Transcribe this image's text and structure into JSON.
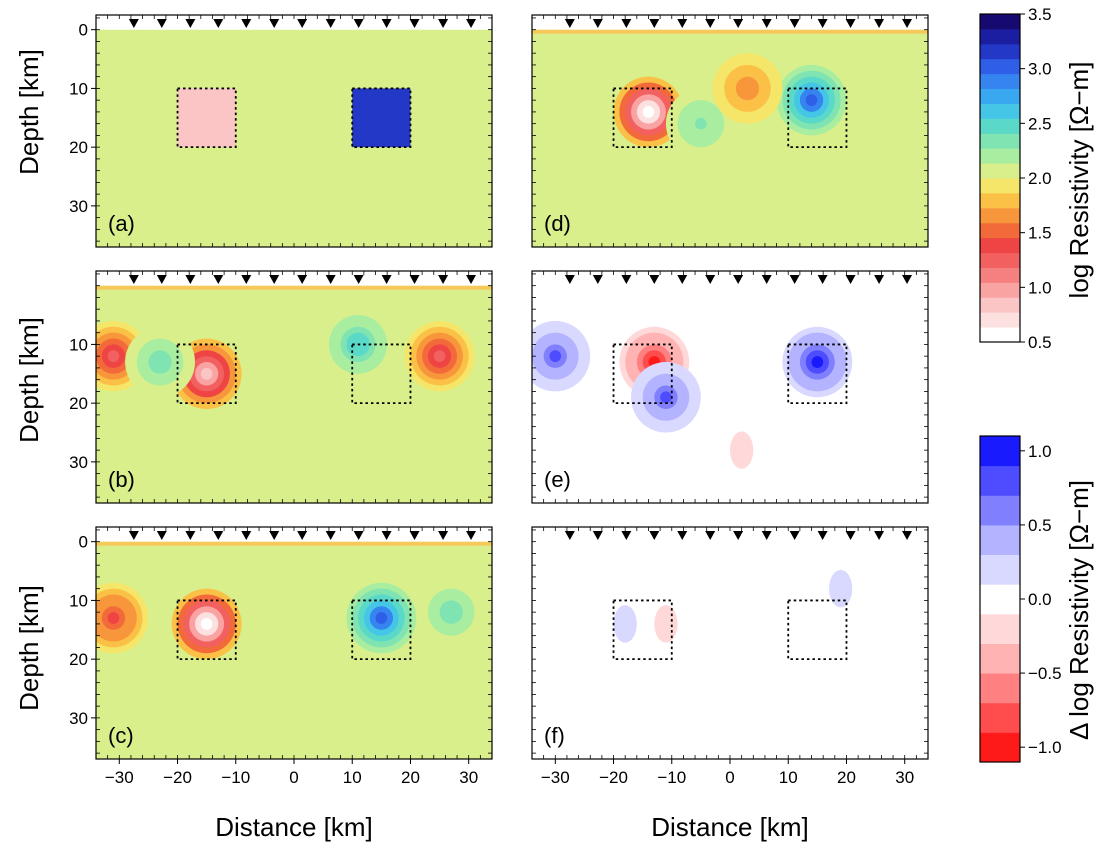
{
  "chart_data": {
    "type": "heatmap",
    "x_axis": {
      "label": "Distance [km]",
      "ticks": [
        "−30",
        "−20",
        "−10",
        "0",
        "10",
        "20",
        "30"
      ],
      "tick_values": [
        -30,
        -20,
        -10,
        0,
        10,
        20,
        30
      ],
      "range": [
        -34,
        34
      ]
    },
    "y_axis": {
      "label": "Depth [km]",
      "ticks": [
        "0",
        "10",
        "20",
        "30"
      ],
      "tick_values": [
        0,
        10,
        20,
        30
      ],
      "range": [
        -2.5,
        37
      ]
    },
    "stations_km": [
      -27.5,
      -22.7,
      -17.8,
      -13,
      -8.2,
      -3.4,
      1.4,
      6.3,
      11.1,
      15.9,
      20.7,
      25.6,
      30.4
    ],
    "anomaly_boxes": [
      {
        "x": [
          -20,
          -10
        ],
        "depth": [
          10,
          20
        ]
      },
      {
        "x": [
          10,
          20
        ],
        "depth": [
          10,
          20
        ]
      }
    ],
    "panels": [
      {
        "label": "(a)",
        "kind": "true_model",
        "background": 2.0,
        "blobs": [
          {
            "x": -15,
            "z": 15,
            "value": 0.9,
            "shape": "box"
          },
          {
            "x": 15,
            "z": 15,
            "value": 3.1,
            "shape": "box"
          }
        ]
      },
      {
        "label": "(b)",
        "kind": "inversion",
        "background": 2.0,
        "blobs": [
          {
            "x": -15,
            "z": 15,
            "value": 0.8
          },
          {
            "x": -31,
            "z": 12,
            "value": 1.2
          },
          {
            "x": 25,
            "z": 12,
            "value": 1.2
          },
          {
            "x": 11,
            "z": 10,
            "value": 2.5
          },
          {
            "x": -23,
            "z": 13,
            "value": 2.4
          }
        ]
      },
      {
        "label": "(c)",
        "kind": "inversion",
        "background": 2.0,
        "blobs": [
          {
            "x": -15,
            "z": 14,
            "value": 0.5
          },
          {
            "x": 15,
            "z": 13,
            "value": 3.0
          },
          {
            "x": -31,
            "z": 13,
            "value": 1.4
          },
          {
            "x": 27,
            "z": 12,
            "value": 2.4
          }
        ]
      },
      {
        "label": "(d)",
        "kind": "inversion",
        "background": 2.0,
        "blobs": [
          {
            "x": -14,
            "z": 14,
            "value": 0.5
          },
          {
            "x": 14,
            "z": 12,
            "value": 3.0
          },
          {
            "x": -5,
            "z": 16,
            "value": 2.3
          },
          {
            "x": 3,
            "z": 10,
            "value": 1.6
          }
        ]
      },
      {
        "label": "(e)",
        "kind": "difference",
        "blobs": [
          {
            "x": -13,
            "z": 13,
            "value": -1.0
          },
          {
            "x": 15,
            "z": 13,
            "value": 0.9
          },
          {
            "x": -30,
            "z": 12,
            "value": 0.7
          },
          {
            "x": -11,
            "z": 19,
            "value": 0.7
          },
          {
            "x": 2,
            "z": 28,
            "value": -0.3
          }
        ]
      },
      {
        "label": "(f)",
        "kind": "difference",
        "blobs": [
          {
            "x": -18,
            "z": 14,
            "value": 0.25
          },
          {
            "x": -11,
            "z": 14,
            "value": -0.25
          },
          {
            "x": 19,
            "z": 8,
            "value": 0.25
          }
        ]
      }
    ],
    "colorbars": [
      {
        "title": "log Resistivity [Ω−m]",
        "ticks": [
          "0.5",
          "1.0",
          "1.5",
          "2.0",
          "2.5",
          "3.0",
          "3.5"
        ],
        "tick_values": [
          0.5,
          1.0,
          1.5,
          2.0,
          2.5,
          3.0,
          3.5
        ],
        "range": [
          0.5,
          3.5
        ]
      },
      {
        "title": "Δ log Resistivity [Ω−m]",
        "ticks": [
          "1.0",
          "0.5",
          "0.0",
          "−0.5",
          "−1.0"
        ],
        "tick_values": [
          1.0,
          0.5,
          0.0,
          -0.5,
          -1.0
        ],
        "range": [
          -1.1,
          1.1
        ]
      }
    ],
    "colors": {
      "log_resistivity": [
        "#ffffff",
        "#fde0e0",
        "#fcc5c5",
        "#f9a3a3",
        "#f58080",
        "#f26060",
        "#ee4444",
        "#f36a3a",
        "#f7963b",
        "#fbc146",
        "#f5e66a",
        "#d8ef8c",
        "#a9eea0",
        "#7fe4b2",
        "#5ad8c8",
        "#46c6e6",
        "#3aa8f0",
        "#3584f0",
        "#2f5fe6",
        "#2438c8",
        "#1b1ea0",
        "#160a70"
      ],
      "difference": [
        "#ff1a1a",
        "#ff4d4d",
        "#ff8080",
        "#ffb3b3",
        "#ffd9d9",
        "#ffffff",
        "#d9d9ff",
        "#b3b3ff",
        "#8080ff",
        "#4d4dff",
        "#1a1aff"
      ]
    }
  }
}
